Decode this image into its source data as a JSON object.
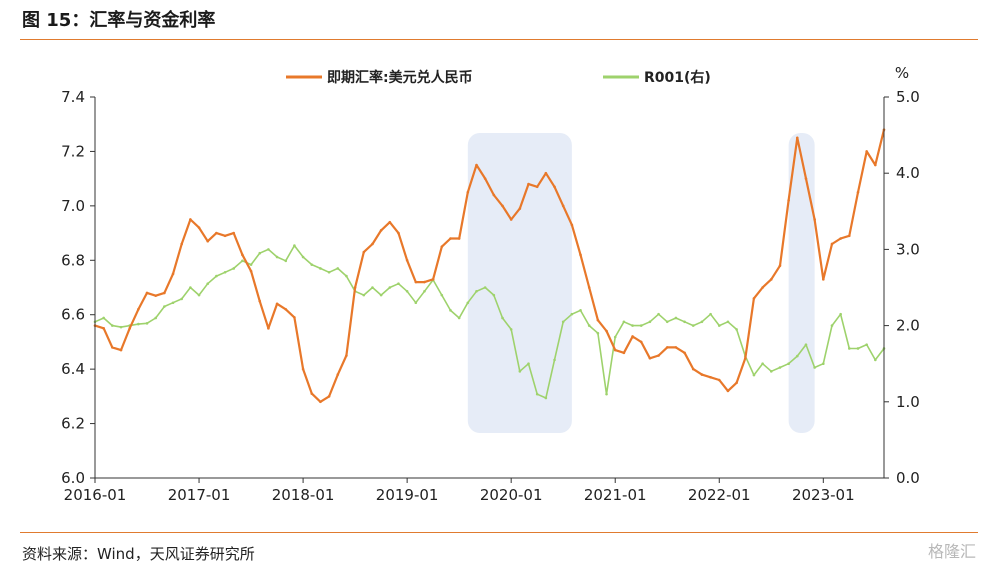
{
  "figure": {
    "title": "图 15：汇率与资金利率",
    "source": "资料来源：Wind，天风证券研究所",
    "watermark": "格隆汇"
  },
  "colors": {
    "orange": "#e8782a",
    "green": "#9ed26c",
    "highlight": "#e6ecf7",
    "axis": "#333333",
    "rule": "#e07b2f"
  },
  "chart_data": {
    "type": "line",
    "y_left_ticks": [
      "6.0",
      "6.2",
      "6.4",
      "6.6",
      "6.8",
      "7.0",
      "7.2",
      "7.4"
    ],
    "y_right_ticks": [
      "0.0",
      "1.0",
      "2.0",
      "3.0",
      "4.0",
      "5.0"
    ],
    "y_right_unit": "%",
    "x_ticks": [
      "2016-01",
      "2017-01",
      "2018-01",
      "2019-01",
      "2020-01",
      "2021-01",
      "2022-01",
      "2023-01"
    ],
    "ylim_left": [
      6.0,
      7.4
    ],
    "ylim_right": [
      0.0,
      5.0
    ],
    "xlim": [
      "2016-01",
      "2023-08"
    ],
    "legend_position": "top-center",
    "highlight_periods": [
      [
        "2019-08",
        "2020-08"
      ],
      [
        "2022-09",
        "2022-12"
      ]
    ],
    "series": [
      {
        "name": "即期汇率:美元兑人民币",
        "axis": "left",
        "x": [
          "2016-01",
          "2016-02",
          "2016-03",
          "2016-04",
          "2016-05",
          "2016-06",
          "2016-07",
          "2016-08",
          "2016-09",
          "2016-10",
          "2016-11",
          "2016-12",
          "2017-01",
          "2017-02",
          "2017-03",
          "2017-04",
          "2017-05",
          "2017-06",
          "2017-07",
          "2017-08",
          "2017-09",
          "2017-10",
          "2017-11",
          "2017-12",
          "2018-01",
          "2018-02",
          "2018-03",
          "2018-04",
          "2018-05",
          "2018-06",
          "2018-07",
          "2018-08",
          "2018-09",
          "2018-10",
          "2018-11",
          "2018-12",
          "2019-01",
          "2019-02",
          "2019-03",
          "2019-04",
          "2019-05",
          "2019-06",
          "2019-07",
          "2019-08",
          "2019-09",
          "2019-10",
          "2019-11",
          "2019-12",
          "2020-01",
          "2020-02",
          "2020-03",
          "2020-04",
          "2020-05",
          "2020-06",
          "2020-07",
          "2020-08",
          "2020-09",
          "2020-10",
          "2020-11",
          "2020-12",
          "2021-01",
          "2021-02",
          "2021-03",
          "2021-04",
          "2021-05",
          "2021-06",
          "2021-07",
          "2021-08",
          "2021-09",
          "2021-10",
          "2021-11",
          "2021-12",
          "2022-01",
          "2022-02",
          "2022-03",
          "2022-04",
          "2022-05",
          "2022-06",
          "2022-07",
          "2022-08",
          "2022-09",
          "2022-10",
          "2022-11",
          "2022-12",
          "2023-01",
          "2023-02",
          "2023-03",
          "2023-04",
          "2023-05",
          "2023-06",
          "2023-07",
          "2023-08"
        ],
        "values": [
          6.56,
          6.55,
          6.48,
          6.47,
          6.55,
          6.62,
          6.68,
          6.67,
          6.68,
          6.75,
          6.86,
          6.95,
          6.92,
          6.87,
          6.9,
          6.89,
          6.9,
          6.82,
          6.76,
          6.65,
          6.55,
          6.64,
          6.62,
          6.59,
          6.4,
          6.31,
          6.28,
          6.3,
          6.38,
          6.45,
          6.7,
          6.83,
          6.86,
          6.91,
          6.94,
          6.9,
          6.8,
          6.72,
          6.72,
          6.73,
          6.85,
          6.88,
          6.88,
          7.05,
          7.15,
          7.1,
          7.04,
          7.0,
          6.95,
          6.99,
          7.08,
          7.07,
          7.12,
          7.07,
          7.0,
          6.93,
          6.82,
          6.7,
          6.58,
          6.54,
          6.47,
          6.46,
          6.52,
          6.5,
          6.44,
          6.45,
          6.48,
          6.48,
          6.46,
          6.4,
          6.38,
          6.37,
          6.36,
          6.32,
          6.35,
          6.44,
          6.66,
          6.7,
          6.73,
          6.78,
          7.02,
          7.25,
          7.1,
          6.95,
          6.73,
          6.86,
          6.88,
          6.89,
          7.05,
          7.2,
          7.15,
          7.28
        ]
      },
      {
        "name": "R001(右)",
        "axis": "right",
        "x": [
          "2016-01",
          "2016-02",
          "2016-03",
          "2016-04",
          "2016-05",
          "2016-06",
          "2016-07",
          "2016-08",
          "2016-09",
          "2016-10",
          "2016-11",
          "2016-12",
          "2017-01",
          "2017-02",
          "2017-03",
          "2017-04",
          "2017-05",
          "2017-06",
          "2017-07",
          "2017-08",
          "2017-09",
          "2017-10",
          "2017-11",
          "2017-12",
          "2018-01",
          "2018-02",
          "2018-03",
          "2018-04",
          "2018-05",
          "2018-06",
          "2018-07",
          "2018-08",
          "2018-09",
          "2018-10",
          "2018-11",
          "2018-12",
          "2019-01",
          "2019-02",
          "2019-03",
          "2019-04",
          "2019-05",
          "2019-06",
          "2019-07",
          "2019-08",
          "2019-09",
          "2019-10",
          "2019-11",
          "2019-12",
          "2020-01",
          "2020-02",
          "2020-03",
          "2020-04",
          "2020-05",
          "2020-06",
          "2020-07",
          "2020-08",
          "2020-09",
          "2020-10",
          "2020-11",
          "2020-12",
          "2021-01",
          "2021-02",
          "2021-03",
          "2021-04",
          "2021-05",
          "2021-06",
          "2021-07",
          "2021-08",
          "2021-09",
          "2021-10",
          "2021-11",
          "2021-12",
          "2022-01",
          "2022-02",
          "2022-03",
          "2022-04",
          "2022-05",
          "2022-06",
          "2022-07",
          "2022-08",
          "2022-09",
          "2022-10",
          "2022-11",
          "2022-12",
          "2023-01",
          "2023-02",
          "2023-03",
          "2023-04",
          "2023-05",
          "2023-06",
          "2023-07",
          "2023-08"
        ],
        "values": [
          2.05,
          2.1,
          2.0,
          1.98,
          2.0,
          2.02,
          2.03,
          2.1,
          2.25,
          2.3,
          2.35,
          2.5,
          2.4,
          2.55,
          2.65,
          2.7,
          2.75,
          2.85,
          2.8,
          2.95,
          3.0,
          2.9,
          2.85,
          3.05,
          2.9,
          2.8,
          2.75,
          2.7,
          2.75,
          2.65,
          2.45,
          2.4,
          2.5,
          2.4,
          2.5,
          2.55,
          2.45,
          2.3,
          2.45,
          2.6,
          2.4,
          2.2,
          2.1,
          2.3,
          2.45,
          2.5,
          2.4,
          2.1,
          1.95,
          1.4,
          1.5,
          1.1,
          1.05,
          1.55,
          2.05,
          2.15,
          2.2,
          2.0,
          1.9,
          1.1,
          1.85,
          2.05,
          2.0,
          2.0,
          2.05,
          2.15,
          2.05,
          2.1,
          2.05,
          2.0,
          2.05,
          2.15,
          2.0,
          2.05,
          1.95,
          1.6,
          1.35,
          1.5,
          1.4,
          1.45,
          1.5,
          1.6,
          1.75,
          1.45,
          1.5,
          2.0,
          2.15,
          1.7,
          1.7,
          1.75,
          1.55,
          1.7
        ]
      }
    ]
  }
}
